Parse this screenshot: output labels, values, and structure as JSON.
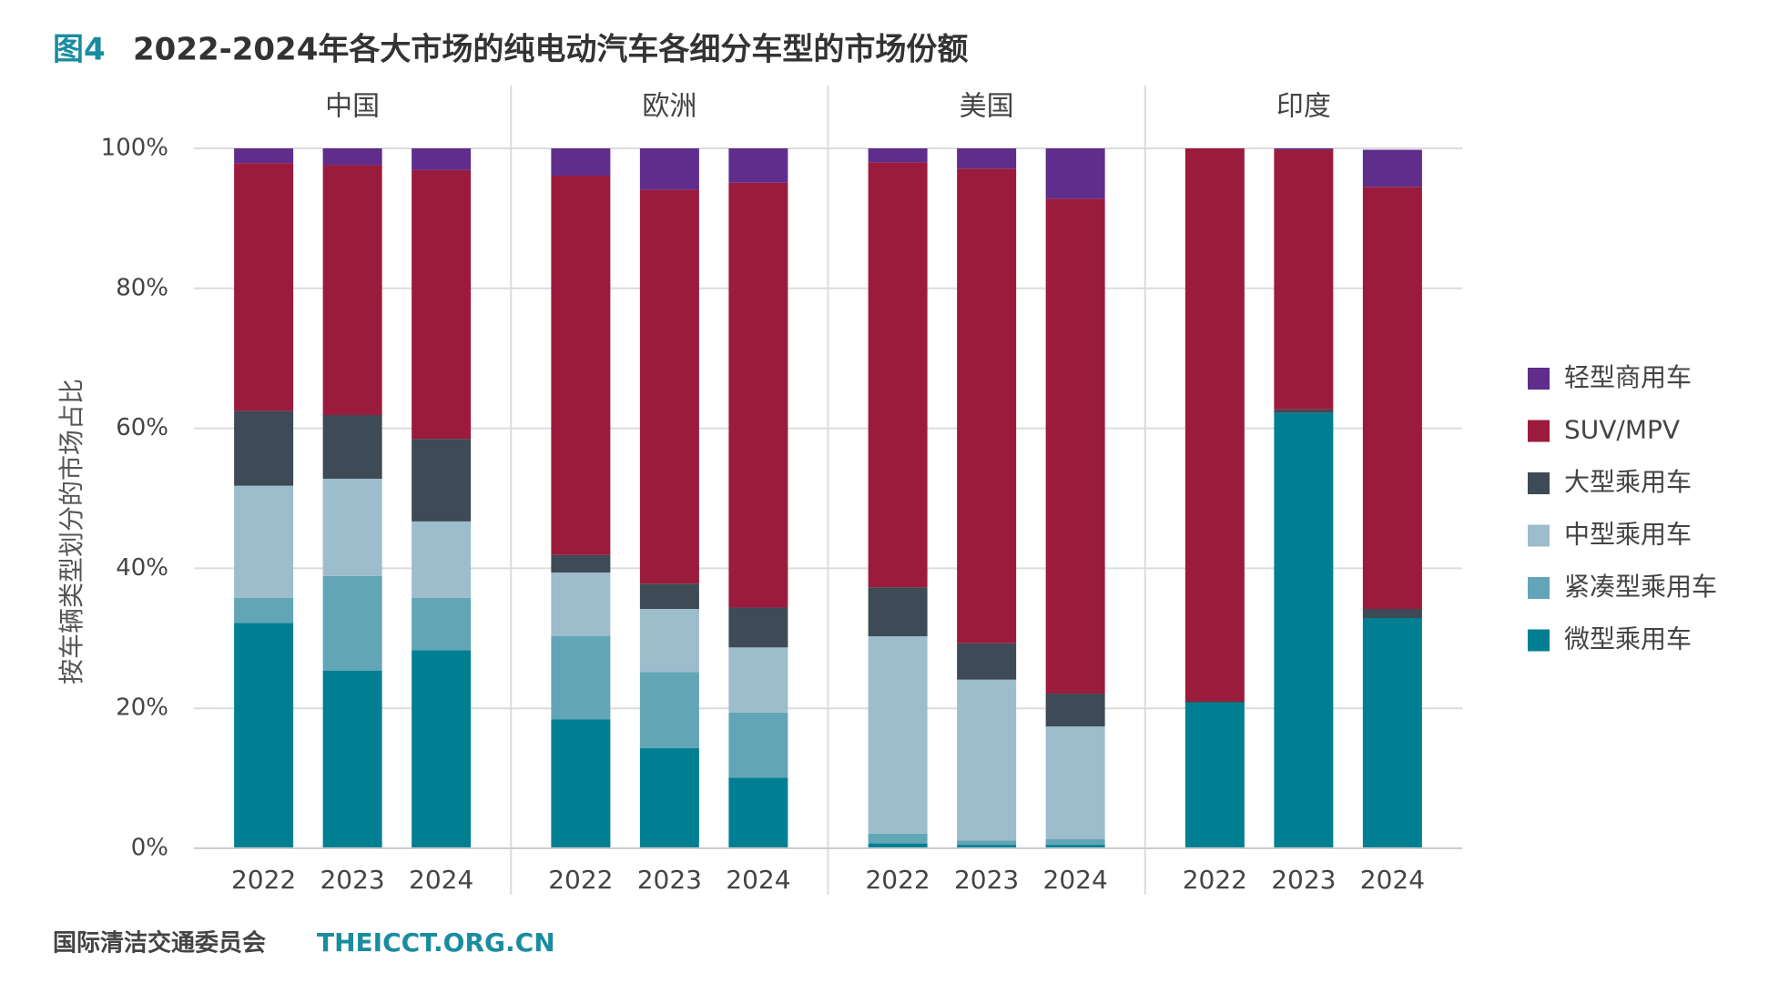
{
  "chart_data": {
    "type": "bar",
    "stacked": true,
    "figure_label": "图4",
    "title": "2022-2024年各大市场的纯电动汽车各细分车型的市场份额",
    "y_label": "按车辆类型划分的市场占比",
    "source": "国际清洁交通委员会",
    "url": "THEICCT.ORG.CN",
    "groups": [
      "中国",
      "欧洲",
      "美国",
      "印度"
    ],
    "categories": [
      "2022",
      "2023",
      "2024",
      "2022",
      "2023",
      "2024",
      "2022",
      "2023",
      "2024",
      "2022",
      "2023",
      "2024"
    ],
    "ylim": [
      0,
      100
    ],
    "yticks": [
      {
        "value": 0,
        "label": "0%"
      },
      {
        "value": 20,
        "label": "20%"
      },
      {
        "value": 40,
        "label": "40%"
      },
      {
        "value": 60,
        "label": "60%"
      },
      {
        "value": 80,
        "label": "80%"
      },
      {
        "value": 100,
        "label": "100%"
      }
    ],
    "grid": true,
    "legend": "right",
    "series": [
      {
        "name": "微型乘用车",
        "color": "#007f93",
        "values": [
          32.2,
          25.4,
          28.3,
          18.4,
          14.3,
          10.1,
          0.7,
          0.5,
          0.5,
          20.8,
          62.2,
          32.9
        ]
      },
      {
        "name": "紧凑型乘用车",
        "color": "#62a5b6",
        "values": [
          3.6,
          13.5,
          7.5,
          11.9,
          10.9,
          9.3,
          1.4,
          0.6,
          0.8,
          0,
          0,
          0
        ]
      },
      {
        "name": "中型乘用车",
        "color": "#9dbccc",
        "values": [
          16.0,
          13.9,
          10.9,
          9.1,
          9.0,
          9.3,
          28.2,
          23.0,
          16.1,
          0,
          0,
          0
        ]
      },
      {
        "name": "大型乘用车",
        "color": "#3e4a55",
        "values": [
          10.7,
          9.1,
          11.8,
          2.5,
          3.6,
          5.7,
          7.0,
          5.2,
          4.7,
          0.2,
          0.5,
          1.3
        ]
      },
      {
        "name": "SUV/MPV",
        "color": "#9b1b3c",
        "values": [
          35.4,
          35.7,
          38.4,
          54.2,
          56.3,
          60.7,
          60.7,
          67.8,
          70.7,
          79.0,
          37.1,
          60.3
        ]
      },
      {
        "name": "轻型商用车",
        "color": "#5f2d8c",
        "values": [
          2.1,
          2.4,
          3.1,
          3.9,
          5.9,
          4.9,
          2.0,
          2.9,
          7.2,
          0,
          0.2,
          5.3
        ]
      }
    ]
  }
}
